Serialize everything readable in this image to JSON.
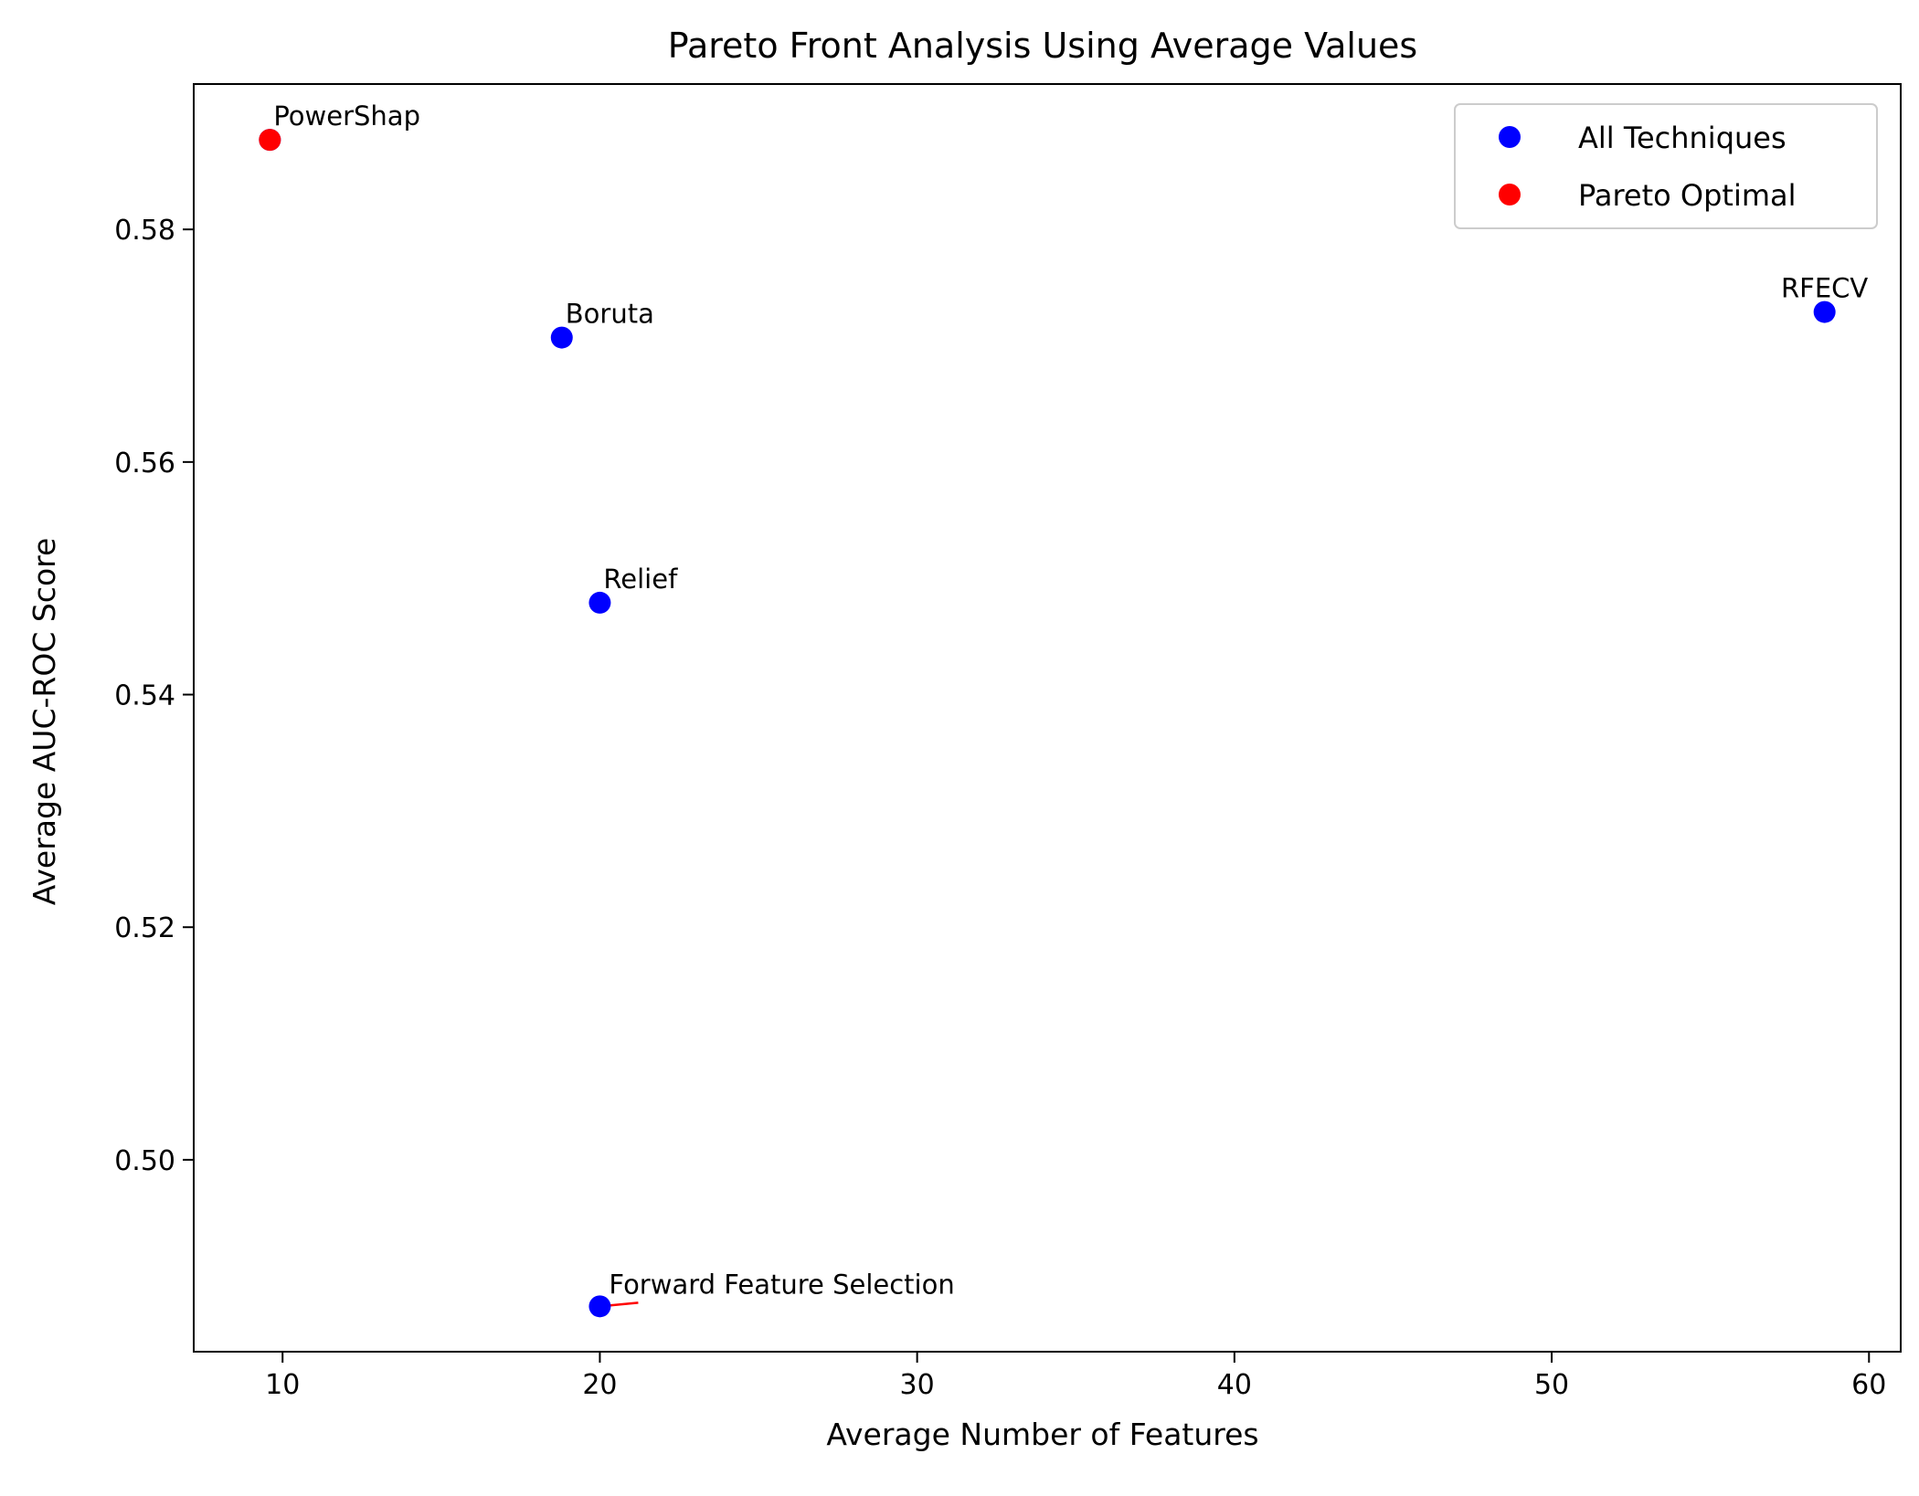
{
  "chart_data": {
    "type": "scatter",
    "title": "Pareto Front Analysis Using Average Values",
    "xlabel": "Average Number of Features",
    "ylabel": "Average AUC-ROC Score",
    "xlim": [
      7.2,
      61.0
    ],
    "ylim": [
      0.4835,
      0.5925
    ],
    "xticks": [
      10,
      20,
      30,
      40,
      50,
      60
    ],
    "xtick_labels": [
      "10",
      "20",
      "30",
      "40",
      "50",
      "60"
    ],
    "yticks": [
      0.5,
      0.52,
      0.54,
      0.56,
      0.58
    ],
    "ytick_labels": [
      "0.50",
      "0.52",
      "0.54",
      "0.56",
      "0.58"
    ],
    "grid": false,
    "legend": {
      "position": "upper right",
      "entries": [
        {
          "name": "All Techniques",
          "color": "#0000ff"
        },
        {
          "name": "Pareto Optimal",
          "color": "#ff0000"
        }
      ]
    },
    "series": [
      {
        "name": "All Techniques",
        "color": "#0000ff",
        "points": [
          {
            "label": "PowerShap",
            "x": 9.6,
            "y": 0.5877
          },
          {
            "label": "Boruta",
            "x": 18.8,
            "y": 0.5707
          },
          {
            "label": "Relief",
            "x": 20.0,
            "y": 0.5479
          },
          {
            "label": "Forward Feature Selection",
            "x": 20.0,
            "y": 0.4874
          },
          {
            "label": "RFECV",
            "x": 58.6,
            "y": 0.5729
          }
        ]
      },
      {
        "name": "Pareto Optimal",
        "color": "#ff0000",
        "points": [
          {
            "label": "PowerShap",
            "x": 9.6,
            "y": 0.5877
          }
        ]
      }
    ],
    "annotations": [
      {
        "text": "PowerShap",
        "x": 9.6,
        "y": 0.5877
      },
      {
        "text": "Boruta",
        "x": 18.8,
        "y": 0.5707
      },
      {
        "text": "Relief",
        "x": 20.0,
        "y": 0.5479
      },
      {
        "text": "Forward Feature Selection",
        "x": 20.0,
        "y": 0.4874,
        "leader_color": "#ff0000"
      },
      {
        "text": "RFECV",
        "x": 58.6,
        "y": 0.5729,
        "leader_color": "#ff0000"
      }
    ]
  }
}
